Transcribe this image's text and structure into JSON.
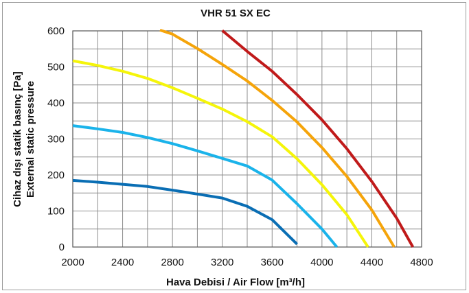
{
  "chart_data": {
    "type": "line",
    "title": "VHR 51 SX EC",
    "xlabel": "Hava Debisi / Air Flow [m³/h]",
    "ylabel_line1": "Cihaz dışı statik basınç [Pa]",
    "ylabel_line2": "External static pressure",
    "xlim": [
      2000,
      4800
    ],
    "ylim": [
      0,
      600
    ],
    "x_ticks": [
      2000,
      2400,
      2800,
      3200,
      3600,
      4000,
      4400,
      4800
    ],
    "x_tick_labels": [
      "2000",
      "2400",
      "2800",
      "3200",
      "3600",
      "4000",
      "4400",
      "4800"
    ],
    "y_ticks": [
      0,
      100,
      200,
      300,
      400,
      500,
      600
    ],
    "y_tick_labels": [
      "0",
      "100",
      "200",
      "300",
      "400",
      "500",
      "600"
    ],
    "x_grid_step": 200,
    "y_grid_step": 50,
    "grid": true,
    "legend": "none",
    "series": [
      {
        "color": "#0a6eb4",
        "points": [
          [
            2000,
            185
          ],
          [
            2200,
            180
          ],
          [
            2400,
            174
          ],
          [
            2600,
            168
          ],
          [
            2800,
            158
          ],
          [
            3000,
            147
          ],
          [
            3200,
            136
          ],
          [
            3400,
            113
          ],
          [
            3600,
            76
          ],
          [
            3800,
            8
          ]
        ]
      },
      {
        "color": "#1ab3ea",
        "points": [
          [
            2000,
            337
          ],
          [
            2200,
            328
          ],
          [
            2400,
            318
          ],
          [
            2600,
            304
          ],
          [
            2800,
            287
          ],
          [
            3000,
            267
          ],
          [
            3200,
            246
          ],
          [
            3400,
            225
          ],
          [
            3600,
            186
          ],
          [
            3800,
            120
          ],
          [
            4000,
            50
          ],
          [
            4120,
            0
          ]
        ]
      },
      {
        "color": "#f5f50a",
        "points": [
          [
            2000,
            517
          ],
          [
            2200,
            504
          ],
          [
            2400,
            488
          ],
          [
            2600,
            468
          ],
          [
            2800,
            442
          ],
          [
            3000,
            413
          ],
          [
            3200,
            383
          ],
          [
            3400,
            348
          ],
          [
            3600,
            306
          ],
          [
            3800,
            245
          ],
          [
            4000,
            173
          ],
          [
            4200,
            90
          ],
          [
            4370,
            0
          ]
        ]
      },
      {
        "color": "#f5a40a",
        "points": [
          [
            2700,
            602
          ],
          [
            2800,
            591
          ],
          [
            3000,
            551
          ],
          [
            3200,
            507
          ],
          [
            3400,
            461
          ],
          [
            3600,
            407
          ],
          [
            3800,
            347
          ],
          [
            4000,
            276
          ],
          [
            4200,
            196
          ],
          [
            4400,
            103
          ],
          [
            4580,
            0
          ]
        ]
      },
      {
        "color": "#c01a1a",
        "points": [
          [
            3200,
            601
          ],
          [
            3400,
            543
          ],
          [
            3600,
            488
          ],
          [
            3800,
            423
          ],
          [
            4000,
            353
          ],
          [
            4200,
            273
          ],
          [
            4400,
            182
          ],
          [
            4600,
            80
          ],
          [
            4730,
            0
          ]
        ]
      }
    ]
  }
}
